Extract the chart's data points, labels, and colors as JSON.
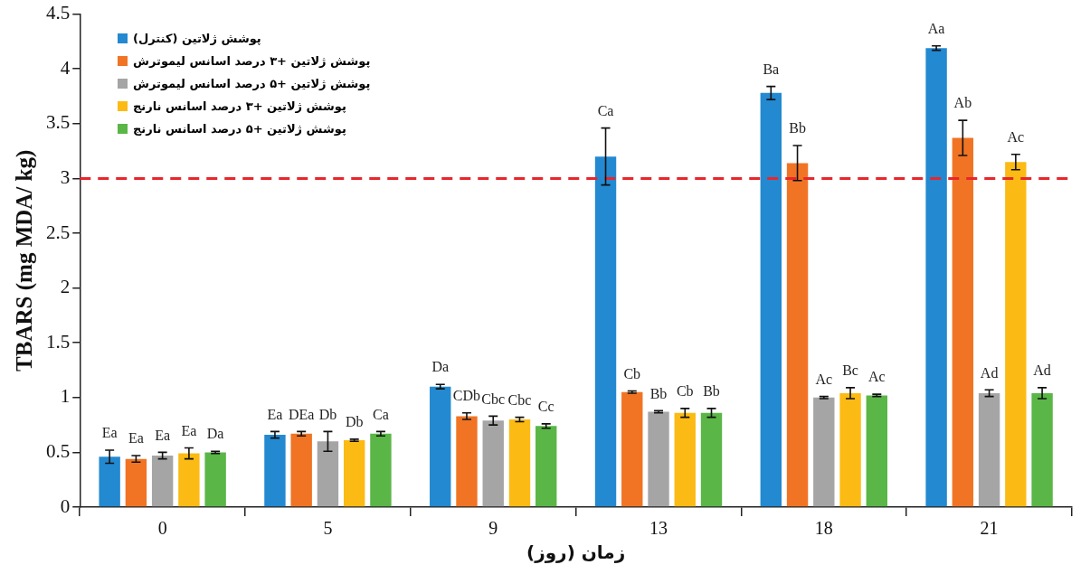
{
  "chart_data": {
    "type": "bar",
    "xlabel": "زمان (روز)",
    "ylabel": "TBARS (mg MDA/ kg)",
    "categories": [
      "0",
      "5",
      "9",
      "13",
      "18",
      "21"
    ],
    "series": [
      {
        "name": "پوشش ژلاتین (کنترل)",
        "color": "#2389d0",
        "values": [
          0.46,
          0.66,
          1.1,
          3.2,
          3.78,
          4.19
        ],
        "errors": [
          0.06,
          0.03,
          0.02,
          0.26,
          0.06,
          0.02
        ],
        "value_labels": [
          "Ea",
          "Ea",
          "Da",
          "Ca",
          "Ba",
          "Aa"
        ]
      },
      {
        "name": "پوشش ژلاتین +۳ درصد اسانس لیموترش",
        "color": "#f07424",
        "values": [
          0.44,
          0.67,
          0.83,
          1.05,
          3.14,
          3.37
        ],
        "errors": [
          0.03,
          0.02,
          0.03,
          0.01,
          0.16,
          0.16
        ],
        "value_labels": [
          "Ea",
          "DEa",
          "CDb",
          "Cb",
          "Bb",
          "Ab"
        ]
      },
      {
        "name": "پوشش ژلاتین +۵ درصد اسانس لیموترش",
        "color": "#a5a5a5",
        "values": [
          0.47,
          0.6,
          0.79,
          0.87,
          1.0,
          1.04
        ],
        "errors": [
          0.03,
          0.09,
          0.04,
          0.01,
          0.01,
          0.03
        ],
        "value_labels": [
          "Ea",
          "Db",
          "Cbc",
          "Bb",
          "Ac",
          "Ad"
        ]
      },
      {
        "name": "پوشش ژلاتین +۳ درصد اسانس نارنج",
        "color": "#fbbb14",
        "values": [
          0.49,
          0.61,
          0.8,
          0.86,
          1.04,
          3.15
        ],
        "errors": [
          0.05,
          0.01,
          0.02,
          0.04,
          0.05,
          0.07
        ],
        "value_labels": [
          "Ea",
          "Db",
          "Cbc",
          "Cb",
          "Bc",
          "Ac"
        ]
      },
      {
        "name": "پوشش ژلاتین +۵ درصد اسانس نارنج",
        "color": "#5ab646",
        "values": [
          0.5,
          0.67,
          0.74,
          0.86,
          1.02,
          1.04
        ],
        "errors": [
          0.01,
          0.02,
          0.02,
          0.04,
          0.01,
          0.05
        ],
        "value_labels": [
          "Da",
          "Ca",
          "Cc",
          "Bb",
          "Ac",
          "Ad"
        ]
      }
    ],
    "ylim": [
      0,
      4.5
    ],
    "yticks": [
      0,
      0.5,
      1,
      1.5,
      2,
      2.5,
      3,
      3.5,
      4,
      4.5
    ],
    "ref_lines": [
      {
        "axis": "y",
        "value": 3,
        "color": "#e8262b",
        "line_style": "dashed"
      }
    ],
    "grid": false,
    "legend": "top left"
  }
}
